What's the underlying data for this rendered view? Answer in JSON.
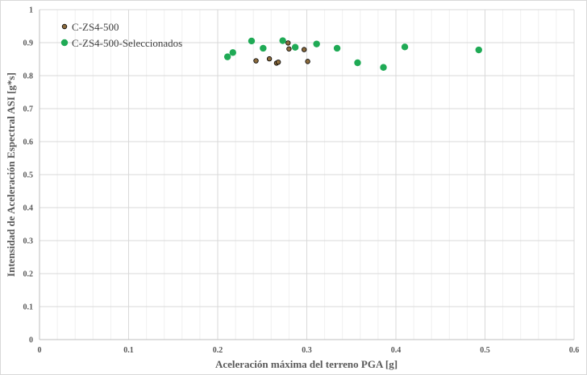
{
  "chart_data": {
    "type": "scatter",
    "xlabel": "Aceleración máxima del terreno PGA [g]",
    "ylabel": "Intensidad de Aceleración Espectral ASI [g*s]",
    "xlim": [
      0,
      0.6
    ],
    "ylim": [
      0,
      1
    ],
    "x_ticks": [
      "0",
      "0.1",
      "0.2",
      "0.3",
      "0.4",
      "0.5",
      "0.6"
    ],
    "y_ticks": [
      "0",
      "0.1",
      "0.2",
      "0.3",
      "0.4",
      "0.5",
      "0.6",
      "0.7",
      "0.8",
      "0.9",
      "1"
    ],
    "grid": true,
    "legend_position": "top-left",
    "series": [
      {
        "name": "C-ZS4-500",
        "color": "#8b6b3d",
        "points": [
          {
            "x": 0.243,
            "y": 0.845
          },
          {
            "x": 0.258,
            "y": 0.851
          },
          {
            "x": 0.266,
            "y": 0.838
          },
          {
            "x": 0.268,
            "y": 0.841
          },
          {
            "x": 0.279,
            "y": 0.899
          },
          {
            "x": 0.28,
            "y": 0.881
          },
          {
            "x": 0.297,
            "y": 0.879
          },
          {
            "x": 0.301,
            "y": 0.843
          }
        ]
      },
      {
        "name": "C-ZS4-500-Seleccionados",
        "color": "#1faa55",
        "points": [
          {
            "x": 0.211,
            "y": 0.857
          },
          {
            "x": 0.217,
            "y": 0.87
          },
          {
            "x": 0.238,
            "y": 0.905
          },
          {
            "x": 0.251,
            "y": 0.883
          },
          {
            "x": 0.273,
            "y": 0.906
          },
          {
            "x": 0.287,
            "y": 0.886
          },
          {
            "x": 0.311,
            "y": 0.896
          },
          {
            "x": 0.334,
            "y": 0.883
          },
          {
            "x": 0.357,
            "y": 0.839
          },
          {
            "x": 0.386,
            "y": 0.825
          },
          {
            "x": 0.41,
            "y": 0.887
          },
          {
            "x": 0.493,
            "y": 0.878
          }
        ]
      }
    ]
  }
}
